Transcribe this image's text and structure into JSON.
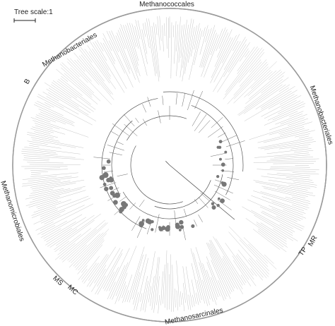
{
  "scale": {
    "label": "Tree scale:1"
  },
  "clades": [
    {
      "id": "methanococcales",
      "label": "Methanococcales",
      "start_deg": 300,
      "end_deg": 30
    },
    {
      "id": "methanobacteriales-top",
      "label": "Methanobacteriales",
      "start_deg": 296,
      "end_deg": 245
    },
    {
      "id": "b",
      "label": "B",
      "start_deg": 240,
      "end_deg": 234
    },
    {
      "id": "methanobacteriales-right",
      "label": "Methanobacteriales",
      "start_deg": 36,
      "end_deg": 128
    },
    {
      "id": "mr",
      "label": "MR",
      "start_deg": 133,
      "end_deg": 141
    },
    {
      "id": "tp",
      "label": "TP",
      "start_deg": 141,
      "end_deg": 149
    },
    {
      "id": "methanosarcinales",
      "label": "Methanosarcinales",
      "start_deg": 152,
      "end_deg": 222
    },
    {
      "id": "mc",
      "label": "MC",
      "start_deg": 222,
      "end_deg": 229
    },
    {
      "id": "ms",
      "label": "MS",
      "start_deg": 229,
      "end_deg": 236
    },
    {
      "id": "methanomicrobiales",
      "label": "Methanomicrobiales",
      "start_deg": 238,
      "end_deg": 320
    }
  ],
  "colors": {
    "ink": "#222222",
    "clade_arc": "#9a9a9a",
    "leaf": "#bdbdbd",
    "node": "#777777"
  }
}
